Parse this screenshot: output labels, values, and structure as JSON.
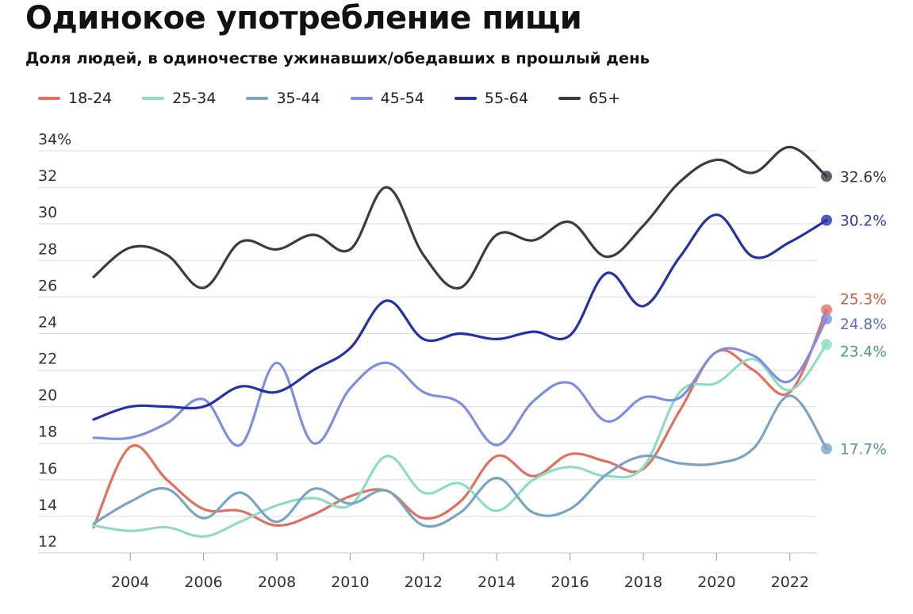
{
  "chart_data": {
    "type": "line",
    "title": "Одинокое употребление пищи",
    "subtitle": "Доля людей, в одиночестве ужинавших/обедавших в прошлый день",
    "xlabel": "",
    "ylabel": "",
    "x": [
      2003,
      2004,
      2005,
      2006,
      2007,
      2008,
      2009,
      2010,
      2011,
      2012,
      2013,
      2014,
      2015,
      2016,
      2017,
      2018,
      2019,
      2020,
      2021,
      2022,
      2023
    ],
    "xlim": [
      2003,
      2023
    ],
    "ylim": [
      12,
      34
    ],
    "x_ticks": [
      "2004",
      "2006",
      "2008",
      "2010",
      "2012",
      "2014",
      "2016",
      "2018",
      "2020",
      "2022"
    ],
    "y_ticks": [
      "12",
      "14",
      "16",
      "18",
      "20",
      "22",
      "24",
      "26",
      "28",
      "30",
      "32",
      "34%"
    ],
    "grid": true,
    "legend_position": "top-left",
    "series": [
      {
        "name": "18-24",
        "color": "#e0705f",
        "values": [
          13.4,
          17.8,
          16.0,
          14.4,
          14.3,
          13.5,
          14.1,
          15.1,
          15.4,
          13.9,
          14.8,
          17.3,
          16.2,
          17.4,
          17.0,
          16.6,
          19.8,
          23.0,
          22.0,
          20.8,
          25.3
        ],
        "end_label": "25.3%",
        "end_label_color": "#c85a4a"
      },
      {
        "name": "25-34",
        "color": "#8fdcc4",
        "values": [
          13.5,
          13.2,
          13.4,
          12.9,
          13.7,
          14.6,
          15.0,
          14.6,
          17.3,
          15.3,
          15.8,
          14.3,
          16.0,
          16.7,
          16.2,
          16.7,
          20.8,
          21.3,
          22.6,
          20.9,
          23.4
        ],
        "end_label": "23.4%",
        "end_label_color": "#4f9a7c"
      },
      {
        "name": "35-44",
        "color": "#7ba4c1",
        "values": [
          13.6,
          14.8,
          15.5,
          13.9,
          15.3,
          13.7,
          15.5,
          14.7,
          15.4,
          13.5,
          14.2,
          16.1,
          14.2,
          14.4,
          16.3,
          17.3,
          16.9,
          16.9,
          17.7,
          20.6,
          17.7
        ],
        "end_label": "17.7%",
        "end_label_color": "#5d8ba8"
      },
      {
        "name": "45-54",
        "color": "#7f8ede",
        "values": [
          18.3,
          18.3,
          19.1,
          20.4,
          17.9,
          22.4,
          18.0,
          21.0,
          22.4,
          20.8,
          20.2,
          17.9,
          20.3,
          21.3,
          19.2,
          20.5,
          20.5,
          23.0,
          22.8,
          21.4,
          24.8
        ],
        "end_label": "24.8%",
        "end_label_color": "#5f6fc9"
      },
      {
        "name": "55-64",
        "color": "#2431a6",
        "values": [
          19.3,
          20.0,
          20.0,
          20.0,
          21.1,
          20.8,
          22.0,
          23.2,
          25.8,
          23.7,
          24.0,
          23.7,
          24.1,
          23.9,
          27.3,
          25.5,
          28.2,
          30.5,
          28.2,
          29.0,
          30.2
        ],
        "end_label": "30.2%",
        "end_label_color": "#2f3ca8"
      },
      {
        "name": "65+",
        "color": "#373d46",
        "values": [
          27.1,
          28.7,
          28.3,
          26.5,
          29.0,
          28.6,
          29.4,
          28.6,
          32.0,
          28.3,
          26.5,
          29.4,
          29.1,
          30.1,
          28.2,
          29.9,
          32.3,
          33.5,
          32.8,
          34.2,
          32.6
        ],
        "end_label": "32.6%",
        "end_label_color": "#333333"
      }
    ]
  }
}
